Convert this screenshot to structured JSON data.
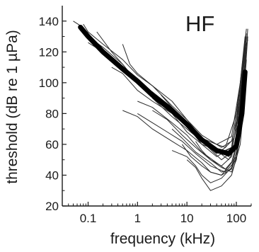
{
  "chart_data": {
    "type": "line",
    "panel_label": "HF",
    "xlabel": "frequency (kHz)",
    "ylabel": "threshold (dB re 1 µPa)",
    "x_scale": "log",
    "xlim": [
      0.03,
      200
    ],
    "ylim": [
      20,
      150
    ],
    "x_ticks": [
      {
        "value": 0.1,
        "label": "0.1"
      },
      {
        "value": 1,
        "label": "1"
      },
      {
        "value": 10,
        "label": "10"
      },
      {
        "value": 100,
        "label": "100"
      }
    ],
    "y_ticks": [
      {
        "value": 20,
        "label": "20"
      },
      {
        "value": 40,
        "label": "40"
      },
      {
        "value": 60,
        "label": "60"
      },
      {
        "value": 80,
        "label": "80"
      },
      {
        "value": 100,
        "label": "100"
      },
      {
        "value": 120,
        "label": "120"
      },
      {
        "value": 140,
        "label": "140"
      }
    ],
    "grid": false,
    "colors": {
      "individual": "#2a2a2a",
      "mean": "#000000"
    },
    "series": [
      {
        "role": "individual",
        "x": [
          0.05,
          0.07,
          0.1,
          0.2,
          0.5,
          1,
          2,
          5,
          10,
          20,
          50,
          80,
          100,
          120,
          150
        ],
        "y": [
          140,
          137,
          130,
          123,
          112,
          100,
          92,
          82,
          72,
          60,
          55,
          58,
          70,
          100,
          130
        ]
      },
      {
        "role": "individual",
        "x": [
          0.08,
          0.1,
          0.2,
          0.5,
          1,
          2,
          5,
          10,
          20,
          50,
          80,
          100,
          130,
          160
        ],
        "y": [
          138,
          133,
          125,
          115,
          105,
          98,
          85,
          76,
          66,
          58,
          62,
          75,
          110,
          135
        ]
      },
      {
        "role": "individual",
        "x": [
          0.1,
          0.2,
          0.5,
          1,
          2,
          5,
          10,
          20,
          40,
          60,
          100,
          140,
          170
        ],
        "y": [
          126,
          120,
          108,
          102,
          90,
          78,
          70,
          62,
          54,
          58,
          80,
          115,
          128
        ]
      },
      {
        "role": "individual",
        "x": [
          0.15,
          0.3,
          0.5,
          1,
          2,
          5,
          10,
          20,
          40,
          80,
          120,
          150
        ],
        "y": [
          133,
          120,
          112,
          100,
          94,
          84,
          74,
          64,
          60,
          65,
          100,
          125
        ]
      },
      {
        "role": "individual",
        "x": [
          0.3,
          0.5,
          1,
          2,
          5,
          10,
          20,
          40,
          80,
          110,
          150
        ],
        "y": [
          110,
          106,
          95,
          88,
          80,
          68,
          60,
          52,
          58,
          90,
          120
        ]
      },
      {
        "role": "individual",
        "x": [
          0.5,
          0.7,
          1,
          2,
          5,
          10,
          20,
          40,
          70,
          100,
          130,
          160
        ],
        "y": [
          125,
          112,
          106,
          98,
          88,
          76,
          64,
          56,
          52,
          62,
          105,
          132
        ]
      },
      {
        "role": "individual",
        "x": [
          0.5,
          1,
          2,
          5,
          10,
          20,
          30,
          50,
          80,
          100,
          120,
          150
        ],
        "y": [
          82,
          78,
          70,
          62,
          56,
          48,
          42,
          40,
          48,
          60,
          95,
          118
        ]
      },
      {
        "role": "individual",
        "x": [
          0.6,
          1,
          2,
          5,
          10,
          20,
          50,
          80,
          120,
          150
        ],
        "y": [
          108,
          100,
          94,
          82,
          72,
          62,
          50,
          55,
          85,
          110
        ]
      },
      {
        "role": "individual",
        "x": [
          1,
          2,
          5,
          10,
          20,
          40,
          60,
          100,
          130,
          160
        ],
        "y": [
          88,
          84,
          74,
          66,
          55,
          48,
          44,
          52,
          90,
          126
        ]
      },
      {
        "role": "individual",
        "x": [
          1,
          2,
          4,
          8,
          15,
          30,
          60,
          100,
          130,
          160
        ],
        "y": [
          80,
          74,
          68,
          62,
          54,
          46,
          42,
          50,
          80,
          115
        ]
      },
      {
        "role": "individual",
        "x": [
          2,
          4,
          8,
          15,
          30,
          50,
          80,
          110,
          140
        ],
        "y": [
          82,
          76,
          66,
          58,
          50,
          46,
          52,
          72,
          110
        ]
      },
      {
        "role": "individual",
        "x": [
          2,
          5,
          10,
          20,
          40,
          70,
          100,
          130,
          160
        ],
        "y": [
          90,
          80,
          72,
          62,
          56,
          50,
          60,
          100,
          130
        ]
      },
      {
        "role": "individual",
        "x": [
          3,
          5,
          10,
          20,
          40,
          60,
          90,
          120,
          150
        ],
        "y": [
          92,
          84,
          74,
          64,
          60,
          58,
          64,
          90,
          118
        ]
      },
      {
        "role": "individual",
        "x": [
          5,
          10,
          15,
          20,
          30,
          50,
          80,
          120,
          150
        ],
        "y": [
          56,
          52,
          46,
          40,
          35,
          38,
          45,
          70,
          100
        ]
      },
      {
        "role": "individual",
        "x": [
          5,
          8,
          15,
          30,
          50,
          80,
          100,
          120,
          150,
          170
        ],
        "y": [
          70,
          64,
          55,
          48,
          42,
          44,
          52,
          80,
          110,
          135
        ]
      },
      {
        "role": "individual",
        "x": [
          8,
          12,
          20,
          30,
          50,
          80,
          100,
          130,
          160
        ],
        "y": [
          60,
          52,
          46,
          42,
          40,
          44,
          55,
          85,
          120
        ]
      },
      {
        "role": "individual",
        "x": [
          10,
          15,
          20,
          30,
          50,
          80,
          120,
          150
        ],
        "y": [
          50,
          45,
          38,
          30,
          33,
          40,
          60,
          95
        ]
      },
      {
        "role": "individual",
        "x": [
          15,
          20,
          30,
          50,
          80,
          100,
          130,
          150,
          170
        ],
        "y": [
          62,
          56,
          50,
          45,
          42,
          50,
          75,
          105,
          130
        ]
      },
      {
        "role": "mean",
        "x": [
          0.07,
          0.1,
          0.2,
          0.5,
          1,
          2,
          5,
          10,
          20,
          40,
          70,
          100,
          130,
          150
        ],
        "y": [
          136,
          130,
          120,
          109,
          101,
          92,
          82,
          73,
          63,
          56,
          54,
          59,
          80,
          107
        ]
      }
    ]
  }
}
